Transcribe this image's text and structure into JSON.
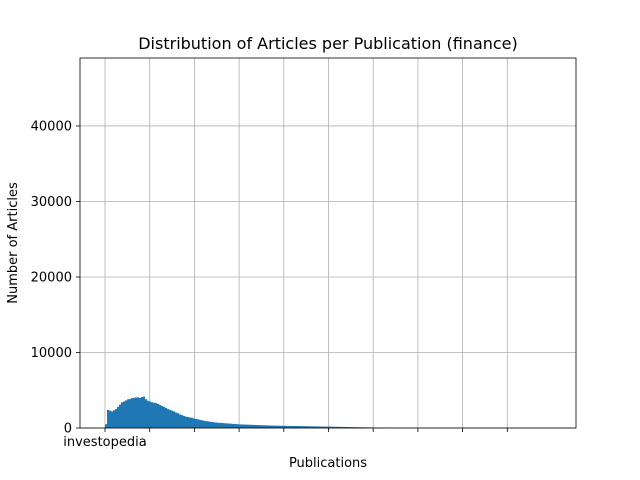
{
  "chart_data": {
    "type": "bar",
    "title": "Distribution of Articles per Publication (finance)",
    "xlabel": "Publications",
    "ylabel": "Number of Articles",
    "x_tick_labels": [
      "investopedia",
      "",
      "",
      "",
      "",
      "",
      "",
      "",
      "",
      ""
    ],
    "ylim": [
      0,
      49000
    ],
    "yticks": [
      0,
      10000,
      20000,
      30000,
      40000
    ],
    "ytick_labels": [
      "0",
      "10000",
      "20000",
      "30000",
      "40000"
    ],
    "grid": true,
    "bar_color": "#1f77b4",
    "values": [
      500,
      2400,
      2300,
      2200,
      2350,
      2500,
      2800,
      3100,
      3400,
      3500,
      3650,
      3800,
      3850,
      3950,
      4000,
      4050,
      4050,
      4000,
      4100,
      4150,
      3800,
      3600,
      3500,
      3400,
      3350,
      3300,
      3200,
      3050,
      2900,
      2800,
      2650,
      2500,
      2400,
      2300,
      2200,
      2050,
      1950,
      1800,
      1700,
      1600,
      1500,
      1450,
      1400,
      1350,
      1250,
      1200,
      1150,
      1080,
      1020,
      960,
      920,
      880,
      840,
      800,
      760,
      730,
      700,
      680,
      660,
      640,
      620,
      600,
      580,
      560,
      540,
      520,
      500,
      480,
      470,
      460,
      450,
      440,
      430,
      420,
      410,
      400,
      390,
      380,
      370,
      360,
      350,
      340,
      330,
      320,
      315,
      310,
      305,
      300,
      295,
      290,
      285,
      280,
      275,
      270,
      265,
      260,
      255,
      250,
      245,
      240,
      235,
      230,
      225,
      220,
      215,
      210,
      205,
      200,
      195,
      190,
      185,
      180,
      175,
      170,
      165,
      160,
      155,
      150,
      145,
      140,
      135,
      130,
      125,
      120,
      115,
      110,
      105,
      100,
      95,
      90,
      85,
      80,
      75,
      70,
      65,
      60,
      55,
      50,
      45,
      40,
      35,
      30,
      25,
      20,
      15,
      10
    ]
  }
}
